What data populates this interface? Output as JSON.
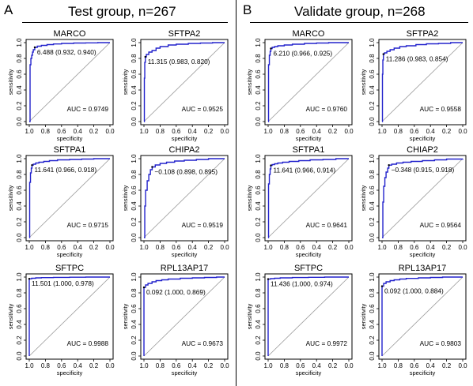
{
  "panels": [
    {
      "letter": "A",
      "title": "Test group, n=267"
    },
    {
      "letter": "B",
      "title": "Validate group, n=268"
    }
  ],
  "axis": {
    "xlabel": "specificity",
    "ylabel": "sensitivity",
    "xticks": [
      "1.0",
      "0.8",
      "0.6",
      "0.4",
      "0.2",
      "0.0"
    ],
    "yticks": [
      "0.0",
      "0.2",
      "0.4",
      "0.6",
      "0.8",
      "1.0"
    ]
  },
  "colors": {
    "roc": "#2222cc",
    "diagonal": "#999999",
    "axis": "#000000"
  },
  "chart_data": [
    {
      "type": "line",
      "group": "Test group, n=267",
      "title": "MARCO",
      "threshold_label": "6.488 (0.932, 0.940)",
      "auc_label": "AUC = 0.9749",
      "xlim": [
        1.0,
        0.0
      ],
      "ylim": [
        0.0,
        1.0
      ],
      "grid": false,
      "x": [
        1.0,
        0.99,
        0.98,
        0.97,
        0.96,
        0.95,
        0.932,
        0.9,
        0.85,
        0.78,
        0.7,
        0.6,
        0.45,
        0.3,
        0.15,
        0.0
      ],
      "y": [
        0.0,
        0.72,
        0.8,
        0.84,
        0.88,
        0.91,
        0.94,
        0.955,
        0.965,
        0.975,
        0.983,
        0.99,
        0.995,
        0.997,
        1.0,
        1.0
      ]
    },
    {
      "type": "line",
      "group": "Test group, n=267",
      "title": "SFTPA2",
      "threshold_label": "11.315 (0.983, 0.820)",
      "auc_label": "AUC = 0.9525",
      "xlim": [
        1.0,
        0.0
      ],
      "ylim": [
        0.0,
        1.0
      ],
      "grid": false,
      "x": [
        1.0,
        0.995,
        0.99,
        0.983,
        0.97,
        0.94,
        0.9,
        0.85,
        0.8,
        0.7,
        0.6,
        0.45,
        0.3,
        0.15,
        0.0
      ],
      "y": [
        0.0,
        0.55,
        0.75,
        0.82,
        0.85,
        0.88,
        0.9,
        0.93,
        0.95,
        0.97,
        0.98,
        0.99,
        0.995,
        1.0,
        1.0
      ]
    },
    {
      "type": "line",
      "group": "Test group, n=267",
      "title": "SFTPA1",
      "threshold_label": "11.641 (0.966, 0.918)",
      "auc_label": "AUC = 0.9715",
      "xlim": [
        1.0,
        0.0
      ],
      "ylim": [
        0.0,
        1.0
      ],
      "grid": false,
      "x": [
        1.0,
        0.995,
        0.985,
        0.975,
        0.966,
        0.95,
        0.92,
        0.88,
        0.82,
        0.75,
        0.65,
        0.5,
        0.35,
        0.2,
        0.0
      ],
      "y": [
        0.0,
        0.7,
        0.82,
        0.88,
        0.918,
        0.93,
        0.945,
        0.955,
        0.965,
        0.975,
        0.985,
        0.99,
        0.995,
        1.0,
        1.0
      ]
    },
    {
      "type": "line",
      "group": "Test group, n=267",
      "title": "CHIPA2",
      "threshold_label": "−0.108 (0.898, 0.895)",
      "auc_label": "AUC = 0.9519",
      "xlim": [
        1.0,
        0.0
      ],
      "ylim": [
        0.0,
        1.0
      ],
      "grid": false,
      "x": [
        1.0,
        0.99,
        0.98,
        0.96,
        0.94,
        0.92,
        0.898,
        0.86,
        0.8,
        0.72,
        0.62,
        0.5,
        0.35,
        0.2,
        0.0
      ],
      "y": [
        0.0,
        0.4,
        0.6,
        0.72,
        0.8,
        0.86,
        0.895,
        0.92,
        0.94,
        0.955,
        0.97,
        0.98,
        0.99,
        1.0,
        1.0
      ]
    },
    {
      "type": "line",
      "group": "Test group, n=267",
      "title": "SFTPC",
      "threshold_label": "11.501 (1.000, 0.978)",
      "auc_label": "AUC = 0.9988",
      "xlim": [
        1.0,
        0.0
      ],
      "ylim": [
        0.0,
        1.0
      ],
      "grid": false,
      "x": [
        1.0,
        1.0,
        0.97,
        0.92,
        0.85,
        0.7,
        0.5,
        0.3,
        0.0
      ],
      "y": [
        0.0,
        0.978,
        0.985,
        0.99,
        0.993,
        0.996,
        0.998,
        1.0,
        1.0
      ]
    },
    {
      "type": "line",
      "group": "Test group, n=267",
      "title": "RPL13AP17",
      "threshold_label": "0.092 (1.000, 0.869)",
      "auc_label": "AUC = 0.9673",
      "xlim": [
        1.0,
        0.0
      ],
      "ylim": [
        0.0,
        1.0
      ],
      "grid": false,
      "x": [
        1.0,
        1.0,
        0.98,
        0.95,
        0.9,
        0.85,
        0.78,
        0.7,
        0.55,
        0.4,
        0.25,
        0.1,
        0.0
      ],
      "y": [
        0.0,
        0.869,
        0.9,
        0.92,
        0.94,
        0.955,
        0.965,
        0.975,
        0.985,
        0.99,
        0.995,
        1.0,
        1.0
      ]
    },
    {
      "type": "line",
      "group": "Validate group, n=268",
      "title": "MARCO",
      "threshold_label": "6.210 (0.966, 0.925)",
      "auc_label": "AUC = 0.9760",
      "xlim": [
        1.0,
        0.0
      ],
      "ylim": [
        0.0,
        1.0
      ],
      "grid": false,
      "x": [
        1.0,
        0.995,
        0.985,
        0.975,
        0.966,
        0.95,
        0.92,
        0.88,
        0.8,
        0.7,
        0.55,
        0.4,
        0.25,
        0.1,
        0.0
      ],
      "y": [
        0.0,
        0.72,
        0.84,
        0.89,
        0.925,
        0.94,
        0.95,
        0.96,
        0.97,
        0.98,
        0.99,
        0.995,
        1.0,
        1.0,
        1.0
      ]
    },
    {
      "type": "line",
      "group": "Validate group, n=268",
      "title": "SFTPA2",
      "threshold_label": "11.286 (0.983, 0.854)",
      "auc_label": "AUC = 0.9558",
      "xlim": [
        1.0,
        0.0
      ],
      "ylim": [
        0.0,
        1.0
      ],
      "grid": false,
      "x": [
        1.0,
        0.995,
        0.99,
        0.983,
        0.97,
        0.94,
        0.9,
        0.85,
        0.78,
        0.7,
        0.58,
        0.45,
        0.3,
        0.15,
        0.0
      ],
      "y": [
        0.0,
        0.6,
        0.78,
        0.854,
        0.87,
        0.89,
        0.91,
        0.93,
        0.95,
        0.96,
        0.975,
        0.985,
        0.99,
        1.0,
        1.0
      ]
    },
    {
      "type": "line",
      "group": "Validate group, n=268",
      "title": "SFTPA1",
      "threshold_label": "11.641 (0.966, 0.914)",
      "auc_label": "AUC = 0.9641",
      "xlim": [
        1.0,
        0.0
      ],
      "ylim": [
        0.0,
        1.0
      ],
      "grid": false,
      "x": [
        1.0,
        0.995,
        0.985,
        0.975,
        0.966,
        0.95,
        0.92,
        0.88,
        0.82,
        0.74,
        0.62,
        0.48,
        0.32,
        0.16,
        0.0
      ],
      "y": [
        0.0,
        0.68,
        0.8,
        0.87,
        0.914,
        0.925,
        0.935,
        0.945,
        0.955,
        0.965,
        0.975,
        0.985,
        0.99,
        1.0,
        1.0
      ]
    },
    {
      "type": "line",
      "group": "Validate group, n=268",
      "title": "CHIAP2",
      "threshold_label": "−0.348 (0.915, 0.918)",
      "auc_label": "AUC = 0.9564",
      "xlim": [
        1.0,
        0.0
      ],
      "ylim": [
        0.0,
        1.0
      ],
      "grid": false,
      "x": [
        1.0,
        0.99,
        0.98,
        0.965,
        0.95,
        0.93,
        0.915,
        0.88,
        0.82,
        0.74,
        0.64,
        0.5,
        0.35,
        0.2,
        0.0
      ],
      "y": [
        0.0,
        0.45,
        0.65,
        0.76,
        0.83,
        0.88,
        0.918,
        0.93,
        0.945,
        0.955,
        0.965,
        0.975,
        0.985,
        0.995,
        1.0
      ]
    },
    {
      "type": "line",
      "group": "Validate group, n=268",
      "title": "SFTPC",
      "threshold_label": "11.436 (1.000, 0.974)",
      "auc_label": "AUC = 0.9972",
      "xlim": [
        1.0,
        0.0
      ],
      "ylim": [
        0.0,
        1.0
      ],
      "grid": false,
      "x": [
        1.0,
        1.0,
        0.97,
        0.92,
        0.85,
        0.7,
        0.5,
        0.3,
        0.0
      ],
      "y": [
        0.0,
        0.974,
        0.98,
        0.985,
        0.99,
        0.994,
        0.997,
        1.0,
        1.0
      ]
    },
    {
      "type": "line",
      "group": "Validate group, n=268",
      "title": "RPL13AP17",
      "threshold_label": "0.092 (1.000, 0.884)",
      "auc_label": "AUC = 0.9803",
      "xlim": [
        1.0,
        0.0
      ],
      "ylim": [
        0.0,
        1.0
      ],
      "grid": false,
      "x": [
        1.0,
        1.0,
        0.98,
        0.95,
        0.9,
        0.85,
        0.78,
        0.7,
        0.55,
        0.4,
        0.25,
        0.1,
        0.0
      ],
      "y": [
        0.0,
        0.884,
        0.92,
        0.94,
        0.955,
        0.965,
        0.975,
        0.983,
        0.99,
        0.995,
        1.0,
        1.0,
        1.0
      ]
    }
  ]
}
